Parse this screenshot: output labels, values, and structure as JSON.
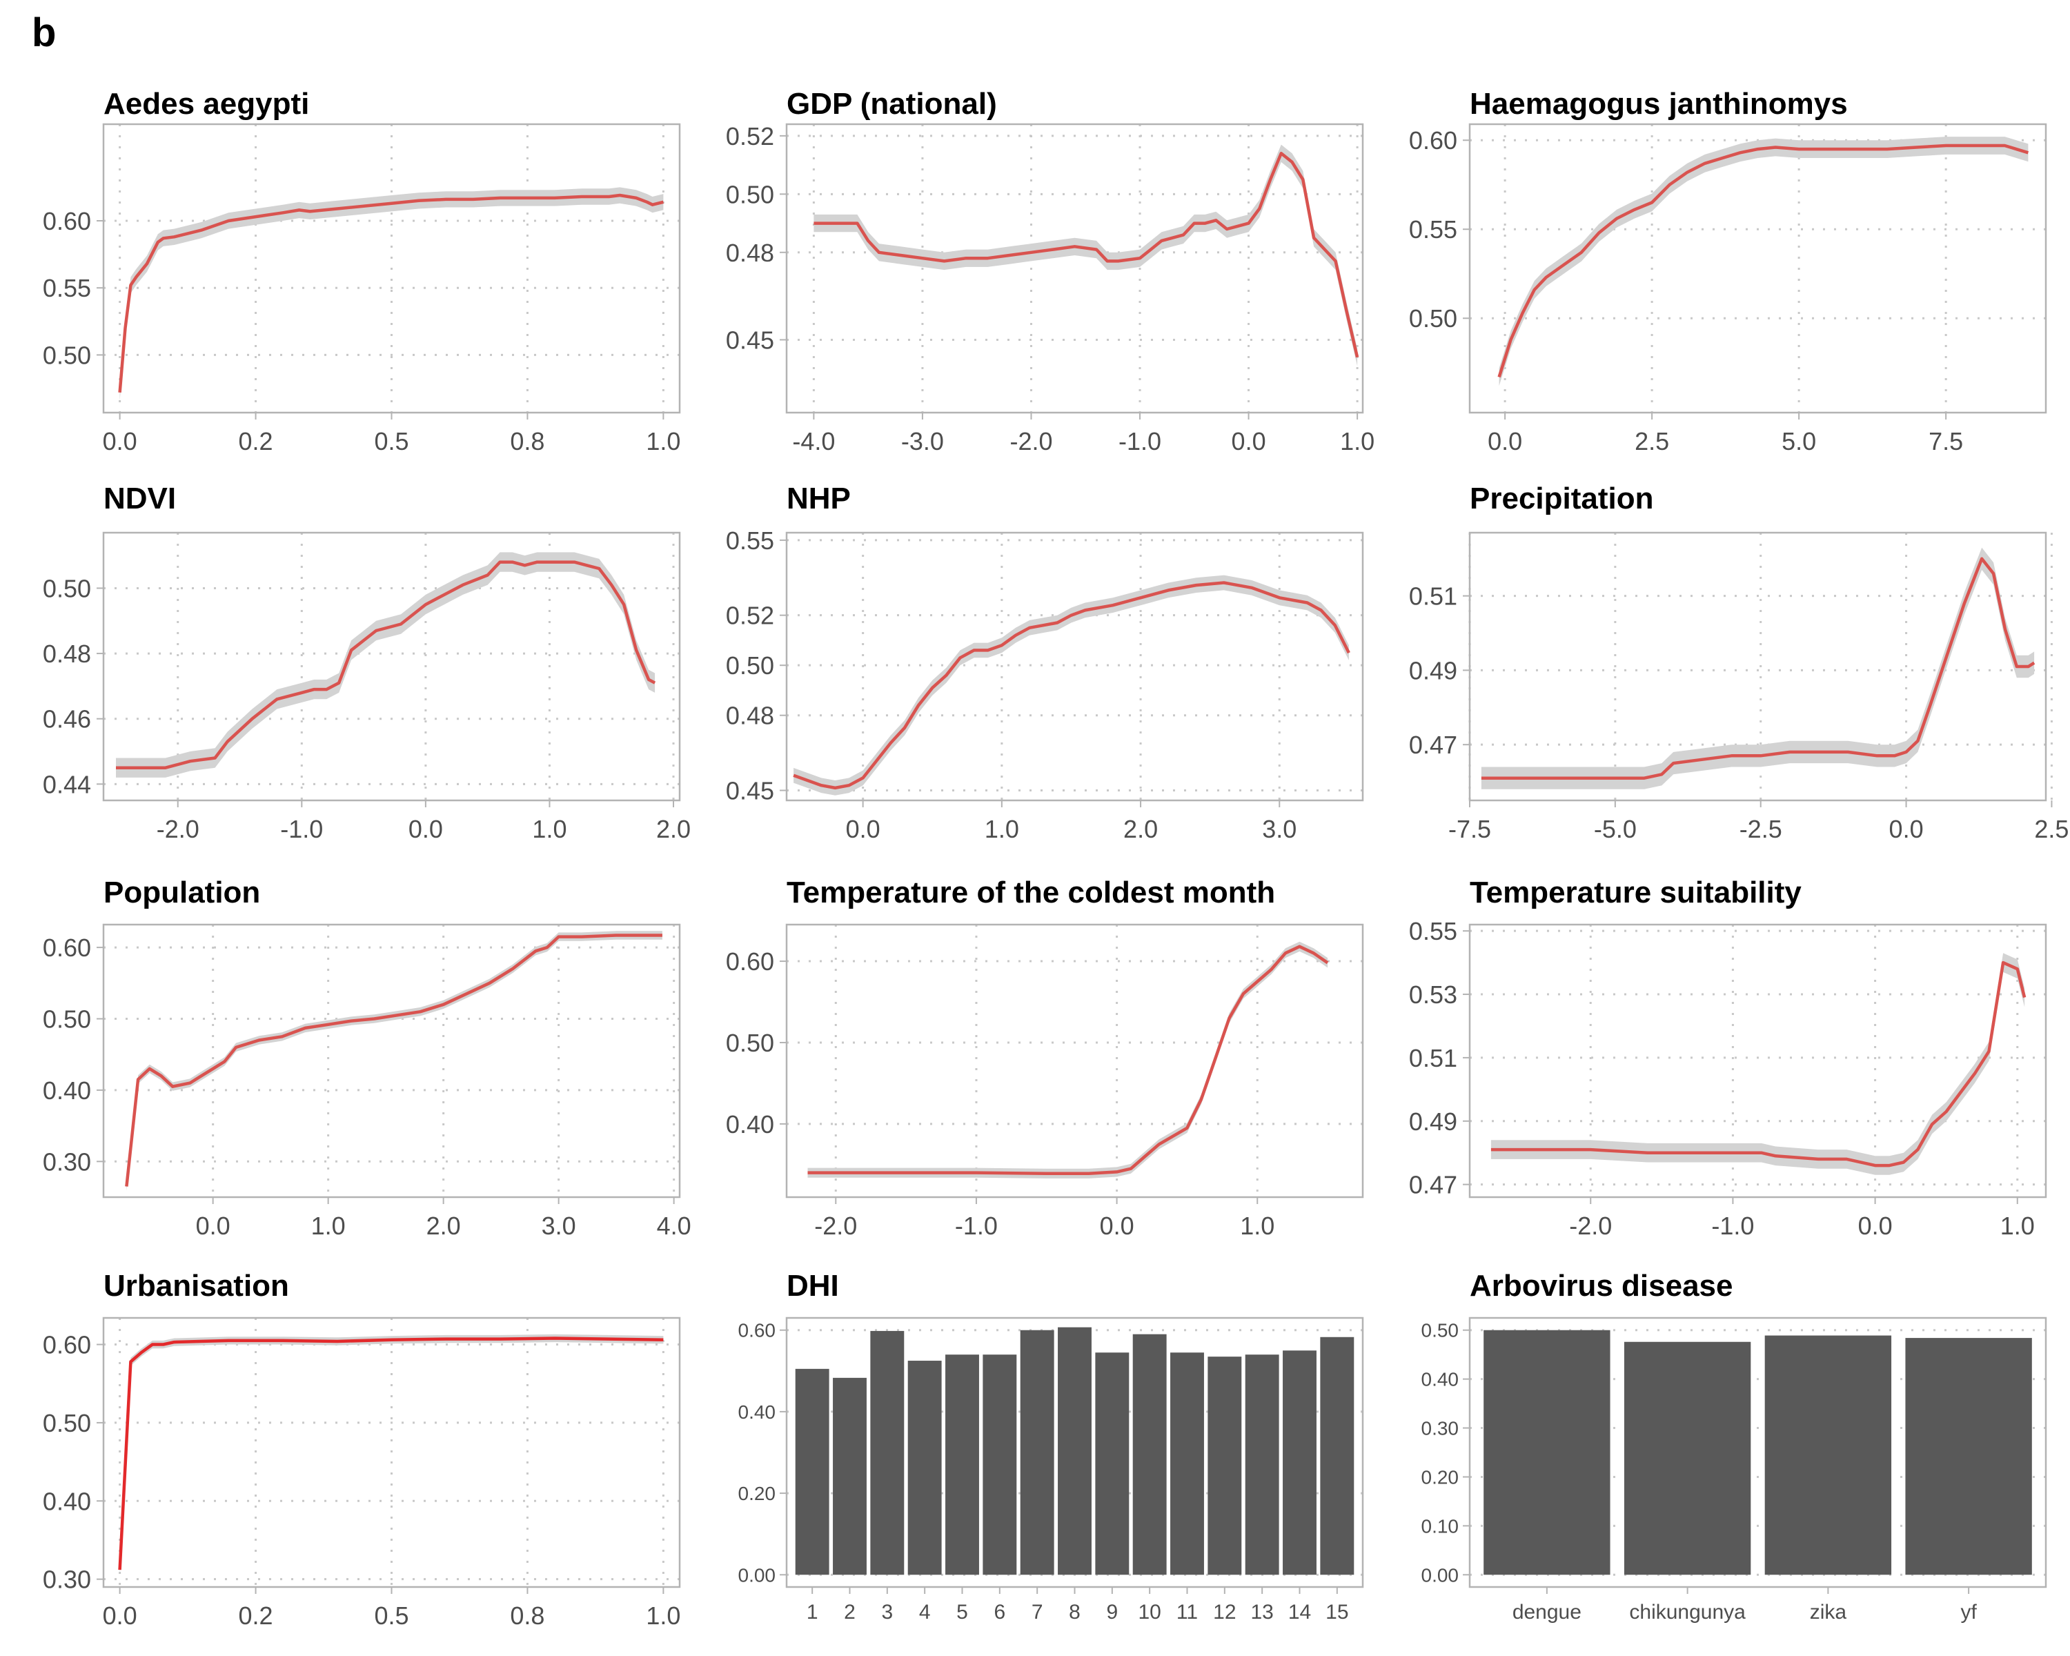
{
  "panel_label": "b",
  "colors": {
    "line": "#d9534f",
    "line_urban": "#e3292b",
    "ribbon": "#d3d3d3",
    "bar": "#595959",
    "frame": "#b3b3b3",
    "grid": "#c8c8c8"
  },
  "chart_data": [
    {
      "id": "aedes",
      "type": "line",
      "title": "Aedes aegypti",
      "xlim": [
        -0.03,
        1.03
      ],
      "ylim": [
        0.457,
        0.672
      ],
      "xticks": [
        {
          "v": 0.0,
          "l": "0.0"
        },
        {
          "v": 0.25,
          "l": "0.2"
        },
        {
          "v": 0.5,
          "l": "0.5"
        },
        {
          "v": 0.75,
          "l": "0.8"
        },
        {
          "v": 1.0,
          "l": "1.0"
        }
      ],
      "yticks": [
        {
          "v": 0.5,
          "l": "0.50"
        },
        {
          "v": 0.55,
          "l": "0.55"
        },
        {
          "v": 0.6,
          "l": "0.60"
        }
      ],
      "x": [
        0.0,
        0.01,
        0.02,
        0.03,
        0.05,
        0.07,
        0.08,
        0.1,
        0.15,
        0.2,
        0.25,
        0.3,
        0.33,
        0.35,
        0.4,
        0.45,
        0.5,
        0.55,
        0.6,
        0.65,
        0.7,
        0.75,
        0.8,
        0.85,
        0.9,
        0.92,
        0.95,
        0.97,
        0.98,
        1.0
      ],
      "y": [
        0.472,
        0.52,
        0.552,
        0.558,
        0.568,
        0.584,
        0.587,
        0.588,
        0.593,
        0.6,
        0.603,
        0.606,
        0.608,
        0.607,
        0.609,
        0.611,
        0.613,
        0.615,
        0.616,
        0.616,
        0.617,
        0.617,
        0.617,
        0.618,
        0.618,
        0.619,
        0.617,
        0.614,
        0.612,
        0.614
      ],
      "band": 0.006
    },
    {
      "id": "gdp",
      "type": "line",
      "title": "GDP (national)",
      "xlim": [
        -4.25,
        1.05
      ],
      "ylim": [
        0.425,
        0.524
      ],
      "xticks": [
        {
          "v": -4,
          "l": "-4.0"
        },
        {
          "v": -3,
          "l": "-3.0"
        },
        {
          "v": -2,
          "l": "-2.0"
        },
        {
          "v": -1,
          "l": "-1.0"
        },
        {
          "v": 0,
          "l": "0.0"
        },
        {
          "v": 1,
          "l": "1.0"
        }
      ],
      "yticks": [
        {
          "v": 0.45,
          "l": "0.45"
        },
        {
          "v": 0.48,
          "l": "0.48"
        },
        {
          "v": 0.5,
          "l": "0.50"
        },
        {
          "v": 0.52,
          "l": "0.52"
        }
      ],
      "x": [
        -4.0,
        -3.8,
        -3.6,
        -3.5,
        -3.4,
        -3.2,
        -3.0,
        -2.8,
        -2.6,
        -2.4,
        -2.2,
        -2.0,
        -1.8,
        -1.6,
        -1.4,
        -1.3,
        -1.2,
        -1.0,
        -0.9,
        -0.8,
        -0.7,
        -0.6,
        -0.5,
        -0.4,
        -0.3,
        -0.2,
        -0.1,
        0.0,
        0.1,
        0.2,
        0.3,
        0.4,
        0.5,
        0.6,
        0.7,
        0.8,
        0.9,
        1.0
      ],
      "y": [
        0.49,
        0.49,
        0.49,
        0.484,
        0.48,
        0.479,
        0.478,
        0.477,
        0.478,
        0.478,
        0.479,
        0.48,
        0.481,
        0.482,
        0.481,
        0.477,
        0.477,
        0.478,
        0.481,
        0.484,
        0.485,
        0.486,
        0.49,
        0.49,
        0.491,
        0.488,
        0.489,
        0.49,
        0.495,
        0.505,
        0.514,
        0.511,
        0.505,
        0.485,
        0.481,
        0.477,
        0.46,
        0.444
      ],
      "band": 0.003
    },
    {
      "id": "haemagogus",
      "type": "line",
      "title": "Haemagogus janthinomys",
      "xlim": [
        -0.6,
        9.2
      ],
      "ylim": [
        0.447,
        0.609
      ],
      "xticks": [
        {
          "v": 0,
          "l": "0.0"
        },
        {
          "v": 2.5,
          "l": "2.5"
        },
        {
          "v": 5,
          "l": "5.0"
        },
        {
          "v": 7.5,
          "l": "7.5"
        }
      ],
      "yticks": [
        {
          "v": 0.5,
          "l": "0.50"
        },
        {
          "v": 0.55,
          "l": "0.55"
        },
        {
          "v": 0.6,
          "l": "0.60"
        }
      ],
      "x": [
        -0.1,
        0.1,
        0.3,
        0.5,
        0.7,
        1.0,
        1.3,
        1.6,
        1.9,
        2.2,
        2.5,
        2.8,
        3.1,
        3.4,
        3.7,
        4.0,
        4.3,
        4.6,
        5.0,
        5.5,
        6.0,
        6.5,
        7.0,
        7.5,
        8.0,
        8.5,
        8.9
      ],
      "y": [
        0.467,
        0.488,
        0.503,
        0.516,
        0.523,
        0.53,
        0.537,
        0.548,
        0.556,
        0.561,
        0.565,
        0.575,
        0.582,
        0.587,
        0.59,
        0.593,
        0.595,
        0.596,
        0.595,
        0.595,
        0.595,
        0.595,
        0.596,
        0.597,
        0.597,
        0.597,
        0.593
      ],
      "band": 0.005
    },
    {
      "id": "ndvi",
      "type": "line",
      "title": "NDVI",
      "xlim": [
        -2.6,
        2.05
      ],
      "ylim": [
        0.435,
        0.517
      ],
      "xticks": [
        {
          "v": -2,
          "l": "-2.0"
        },
        {
          "v": -1,
          "l": "-1.0"
        },
        {
          "v": 0,
          "l": "0.0"
        },
        {
          "v": 1,
          "l": "1.0"
        },
        {
          "v": 2,
          "l": "2.0"
        }
      ],
      "yticks": [
        {
          "v": 0.44,
          "l": "0.44"
        },
        {
          "v": 0.46,
          "l": "0.46"
        },
        {
          "v": 0.48,
          "l": "0.48"
        },
        {
          "v": 0.5,
          "l": "0.50"
        }
      ],
      "x": [
        -2.5,
        -2.3,
        -2.1,
        -2.0,
        -1.9,
        -1.7,
        -1.6,
        -1.4,
        -1.2,
        -1.0,
        -0.9,
        -0.8,
        -0.7,
        -0.6,
        -0.5,
        -0.4,
        -0.2,
        0.0,
        0.1,
        0.3,
        0.5,
        0.6,
        0.7,
        0.8,
        0.9,
        1.0,
        1.1,
        1.2,
        1.3,
        1.4,
        1.5,
        1.6,
        1.7,
        1.8,
        1.85
      ],
      "y": [
        0.445,
        0.445,
        0.445,
        0.446,
        0.447,
        0.448,
        0.453,
        0.46,
        0.466,
        0.468,
        0.469,
        0.469,
        0.471,
        0.481,
        0.484,
        0.487,
        0.489,
        0.495,
        0.497,
        0.501,
        0.504,
        0.508,
        0.508,
        0.507,
        0.508,
        0.508,
        0.508,
        0.508,
        0.507,
        0.506,
        0.501,
        0.495,
        0.481,
        0.472,
        0.471
      ],
      "band": 0.003
    },
    {
      "id": "nhp",
      "type": "line",
      "title": "NHP",
      "xlim": [
        -0.55,
        3.6
      ],
      "ylim": [
        0.446,
        0.553
      ],
      "xticks": [
        {
          "v": 0,
          "l": "0.0"
        },
        {
          "v": 1,
          "l": "1.0"
        },
        {
          "v": 2,
          "l": "2.0"
        },
        {
          "v": 3,
          "l": "3.0"
        }
      ],
      "yticks": [
        {
          "v": 0.45,
          "l": "0.45"
        },
        {
          "v": 0.48,
          "l": "0.48"
        },
        {
          "v": 0.5,
          "l": "0.50"
        },
        {
          "v": 0.52,
          "l": "0.52"
        },
        {
          "v": 0.55,
          "l": "0.55"
        }
      ],
      "x": [
        -0.5,
        -0.4,
        -0.3,
        -0.2,
        -0.1,
        0.0,
        0.1,
        0.2,
        0.3,
        0.4,
        0.5,
        0.6,
        0.7,
        0.8,
        0.9,
        1.0,
        1.1,
        1.2,
        1.3,
        1.4,
        1.5,
        1.6,
        1.8,
        2.0,
        2.2,
        2.4,
        2.6,
        2.8,
        3.0,
        3.2,
        3.3,
        3.4,
        3.5
      ],
      "y": [
        0.456,
        0.454,
        0.452,
        0.451,
        0.452,
        0.455,
        0.462,
        0.469,
        0.475,
        0.484,
        0.491,
        0.496,
        0.503,
        0.506,
        0.506,
        0.508,
        0.512,
        0.515,
        0.516,
        0.517,
        0.52,
        0.522,
        0.524,
        0.527,
        0.53,
        0.532,
        0.533,
        0.531,
        0.527,
        0.525,
        0.522,
        0.516,
        0.505
      ],
      "band": 0.003
    },
    {
      "id": "precip",
      "type": "line",
      "title": "Precipitation",
      "xlim": [
        -7.5,
        2.4
      ],
      "ylim": [
        0.455,
        0.527
      ],
      "xticks": [
        {
          "v": -7.5,
          "l": "-7.5"
        },
        {
          "v": -5,
          "l": "-5.0"
        },
        {
          "v": -2.5,
          "l": "-2.5"
        },
        {
          "v": 0,
          "l": "0.0"
        },
        {
          "v": 2.5,
          "l": "2.5"
        }
      ],
      "yticks": [
        {
          "v": 0.47,
          "l": "0.47"
        },
        {
          "v": 0.49,
          "l": "0.49"
        },
        {
          "v": 0.51,
          "l": "0.51"
        }
      ],
      "x": [
        -7.3,
        -6.5,
        -5.5,
        -4.5,
        -4.2,
        -4.0,
        -3.5,
        -3.0,
        -2.5,
        -2.0,
        -1.5,
        -1.0,
        -0.5,
        -0.2,
        0.0,
        0.2,
        0.4,
        0.7,
        1.0,
        1.3,
        1.5,
        1.7,
        1.9,
        2.1,
        2.2
      ],
      "y": [
        0.461,
        0.461,
        0.461,
        0.461,
        0.462,
        0.465,
        0.466,
        0.467,
        0.467,
        0.468,
        0.468,
        0.468,
        0.467,
        0.467,
        0.468,
        0.471,
        0.48,
        0.494,
        0.508,
        0.52,
        0.516,
        0.501,
        0.491,
        0.491,
        0.492
      ],
      "band": 0.003
    },
    {
      "id": "population",
      "type": "line",
      "title": "Population",
      "xlim": [
        -0.95,
        4.05
      ],
      "ylim": [
        0.25,
        0.632
      ],
      "xticks": [
        {
          "v": 0,
          "l": "0.0"
        },
        {
          "v": 1,
          "l": "1.0"
        },
        {
          "v": 2,
          "l": "2.0"
        },
        {
          "v": 3,
          "l": "3.0"
        },
        {
          "v": 4,
          "l": "4.0"
        }
      ],
      "yticks": [
        {
          "v": 0.3,
          "l": "0.30"
        },
        {
          "v": 0.4,
          "l": "0.40"
        },
        {
          "v": 0.5,
          "l": "0.50"
        },
        {
          "v": 0.6,
          "l": "0.60"
        }
      ],
      "x": [
        -0.75,
        -0.65,
        -0.55,
        -0.45,
        -0.35,
        -0.2,
        -0.1,
        0.0,
        0.1,
        0.2,
        0.4,
        0.6,
        0.8,
        1.0,
        1.2,
        1.4,
        1.6,
        1.8,
        2.0,
        2.2,
        2.4,
        2.6,
        2.8,
        2.9,
        3.0,
        3.2,
        3.5,
        3.9
      ],
      "y": [
        0.265,
        0.415,
        0.43,
        0.42,
        0.405,
        0.41,
        0.42,
        0.43,
        0.44,
        0.46,
        0.47,
        0.475,
        0.487,
        0.492,
        0.497,
        0.5,
        0.505,
        0.51,
        0.52,
        0.535,
        0.55,
        0.57,
        0.595,
        0.6,
        0.615,
        0.615,
        0.617,
        0.617
      ],
      "band": 0.006
    },
    {
      "id": "tcold",
      "type": "line",
      "title": "Temperature of the coldest month",
      "xlim": [
        -2.35,
        1.75
      ],
      "ylim": [
        0.31,
        0.645
      ],
      "xticks": [
        {
          "v": -2,
          "l": "-2.0"
        },
        {
          "v": -1,
          "l": "-1.0"
        },
        {
          "v": 0,
          "l": "0.0"
        },
        {
          "v": 1,
          "l": "1.0"
        }
      ],
      "yticks": [
        {
          "v": 0.4,
          "l": "0.40"
        },
        {
          "v": 0.5,
          "l": "0.50"
        },
        {
          "v": 0.6,
          "l": "0.60"
        }
      ],
      "x": [
        -2.2,
        -1.5,
        -1.0,
        -0.5,
        -0.2,
        0.0,
        0.1,
        0.2,
        0.3,
        0.4,
        0.5,
        0.6,
        0.7,
        0.8,
        0.9,
        1.0,
        1.1,
        1.2,
        1.3,
        1.4,
        1.5
      ],
      "y": [
        0.34,
        0.34,
        0.34,
        0.339,
        0.339,
        0.341,
        0.345,
        0.36,
        0.375,
        0.385,
        0.395,
        0.43,
        0.48,
        0.53,
        0.56,
        0.575,
        0.59,
        0.61,
        0.618,
        0.61,
        0.598
      ],
      "band": 0.006
    },
    {
      "id": "tsuit",
      "type": "line",
      "title": "Temperature suitability",
      "xlim": [
        -2.85,
        1.2
      ],
      "ylim": [
        0.466,
        0.552
      ],
      "xticks": [
        {
          "v": -2,
          "l": "-2.0"
        },
        {
          "v": -1,
          "l": "-1.0"
        },
        {
          "v": 0,
          "l": "0.0"
        },
        {
          "v": 1,
          "l": "1.0"
        }
      ],
      "yticks": [
        {
          "v": 0.47,
          "l": "0.47"
        },
        {
          "v": 0.49,
          "l": "0.49"
        },
        {
          "v": 0.51,
          "l": "0.51"
        },
        {
          "v": 0.53,
          "l": "0.53"
        },
        {
          "v": 0.55,
          "l": "0.55"
        }
      ],
      "x": [
        -2.7,
        -2.3,
        -2.0,
        -1.6,
        -1.2,
        -0.8,
        -0.7,
        -0.4,
        -0.2,
        0.0,
        0.1,
        0.2,
        0.3,
        0.4,
        0.5,
        0.6,
        0.7,
        0.8,
        0.9,
        1.0,
        1.05
      ],
      "y": [
        0.481,
        0.481,
        0.481,
        0.48,
        0.48,
        0.48,
        0.479,
        0.478,
        0.478,
        0.476,
        0.476,
        0.477,
        0.481,
        0.489,
        0.493,
        0.499,
        0.505,
        0.512,
        0.54,
        0.538,
        0.529
      ],
      "band": 0.003
    },
    {
      "id": "urban",
      "type": "line",
      "title": "Urbanisation",
      "xlim": [
        -0.03,
        1.03
      ],
      "ylim": [
        0.29,
        0.634
      ],
      "xticks": [
        {
          "v": 0.0,
          "l": "0.0"
        },
        {
          "v": 0.25,
          "l": "0.2"
        },
        {
          "v": 0.5,
          "l": "0.5"
        },
        {
          "v": 0.75,
          "l": "0.8"
        },
        {
          "v": 1.0,
          "l": "1.0"
        }
      ],
      "yticks": [
        {
          "v": 0.3,
          "l": "0.30"
        },
        {
          "v": 0.4,
          "l": "0.40"
        },
        {
          "v": 0.5,
          "l": "0.50"
        },
        {
          "v": 0.6,
          "l": "0.60"
        }
      ],
      "x": [
        0.0,
        0.02,
        0.04,
        0.06,
        0.08,
        0.1,
        0.2,
        0.3,
        0.4,
        0.5,
        0.6,
        0.7,
        0.8,
        0.9,
        1.0
      ],
      "y": [
        0.312,
        0.578,
        0.59,
        0.6,
        0.6,
        0.603,
        0.605,
        0.605,
        0.604,
        0.606,
        0.607,
        0.607,
        0.608,
        0.607,
        0.606
      ],
      "band": 0.005
    },
    {
      "id": "dhi",
      "type": "bar",
      "title": "DHI",
      "ylim": [
        -0.03,
        0.63
      ],
      "yticks": [
        {
          "v": 0.0,
          "l": "0.00"
        },
        {
          "v": 0.2,
          "l": "0.20"
        },
        {
          "v": 0.4,
          "l": "0.40"
        },
        {
          "v": 0.6,
          "l": "0.60"
        }
      ],
      "categories": [
        "1",
        "2",
        "3",
        "4",
        "5",
        "6",
        "7",
        "8",
        "9",
        "10",
        "11",
        "12",
        "13",
        "14",
        "15"
      ],
      "values": [
        0.505,
        0.483,
        0.598,
        0.525,
        0.54,
        0.54,
        0.6,
        0.607,
        0.545,
        0.59,
        0.545,
        0.535,
        0.54,
        0.55,
        0.583
      ]
    },
    {
      "id": "arbovirus",
      "type": "bar",
      "title": "Arbovirus disease",
      "ylim": [
        -0.025,
        0.525
      ],
      "yticks": [
        {
          "v": 0.0,
          "l": "0.00"
        },
        {
          "v": 0.1,
          "l": "0.10"
        },
        {
          "v": 0.2,
          "l": "0.20"
        },
        {
          "v": 0.3,
          "l": "0.30"
        },
        {
          "v": 0.4,
          "l": "0.40"
        },
        {
          "v": 0.5,
          "l": "0.50"
        }
      ],
      "categories": [
        "dengue",
        "chikungunya",
        "zika",
        "yf"
      ],
      "values": [
        0.5,
        0.476,
        0.489,
        0.484
      ]
    }
  ]
}
